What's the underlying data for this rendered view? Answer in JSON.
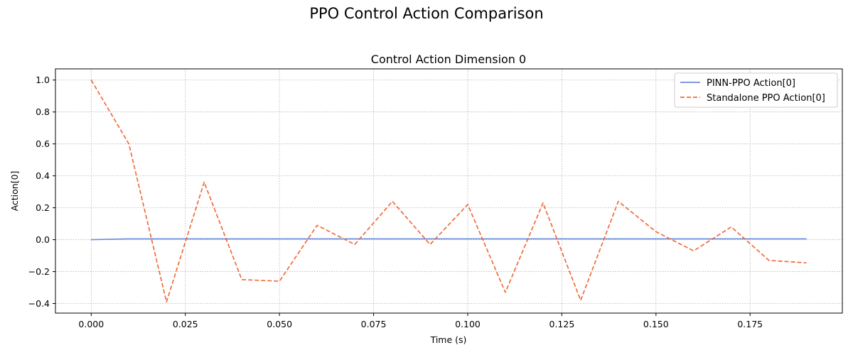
{
  "figure": {
    "suptitle": "PPO Control Action Comparison"
  },
  "chart_data": {
    "type": "line",
    "title": "Control Action Dimension 0",
    "xlabel": "Time (s)",
    "ylabel": "Action[0]",
    "xlim": [
      -0.0095,
      0.1995
    ],
    "ylim": [
      -0.46,
      1.07
    ],
    "xticks": [
      "0.000",
      "0.025",
      "0.050",
      "0.075",
      "0.100",
      "0.125",
      "0.150",
      "0.175"
    ],
    "xtick_values": [
      0,
      0.025,
      0.05,
      0.075,
      0.1,
      0.125,
      0.15,
      0.175
    ],
    "yticks": [
      "1.0",
      "0.8",
      "0.6",
      "0.4",
      "0.2",
      "0.0",
      "−0.2",
      "−0.4"
    ],
    "ytick_values": [
      1.0,
      0.8,
      0.6,
      0.4,
      0.2,
      0.0,
      -0.2,
      -0.4
    ],
    "grid": true,
    "legend_position": "top-right",
    "x": [
      0.0,
      0.01,
      0.02,
      0.03,
      0.04,
      0.05,
      0.06,
      0.07,
      0.08,
      0.09,
      0.1,
      0.11,
      0.12,
      0.13,
      0.14,
      0.15,
      0.16,
      0.17,
      0.18,
      0.19
    ],
    "series": [
      {
        "name": "PINN-PPO Action[0]",
        "color": "#6a8ddb",
        "style": "solid",
        "values": [
          0.0,
          0.005,
          0.005,
          0.005,
          0.005,
          0.005,
          0.005,
          0.005,
          0.005,
          0.005,
          0.005,
          0.005,
          0.005,
          0.005,
          0.005,
          0.005,
          0.005,
          0.005,
          0.005,
          0.005
        ]
      },
      {
        "name": "Standalone PPO Action[0]",
        "color": "#f26b3a",
        "style": "dashed",
        "values": [
          1.0,
          0.6,
          -0.39,
          0.36,
          -0.25,
          -0.26,
          0.09,
          -0.03,
          0.24,
          -0.03,
          0.22,
          -0.33,
          0.23,
          -0.38,
          0.24,
          0.05,
          -0.07,
          0.08,
          -0.13,
          -0.145
        ]
      }
    ]
  }
}
